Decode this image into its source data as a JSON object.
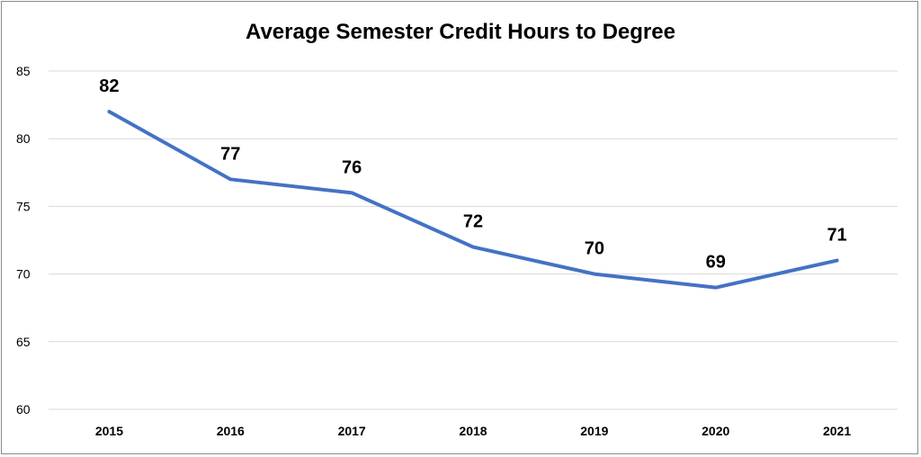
{
  "chart_data": {
    "type": "line",
    "title": "Average Semester Credit Hours to Degree",
    "xlabel": "",
    "ylabel": "",
    "categories": [
      "2015",
      "2016",
      "2017",
      "2018",
      "2019",
      "2020",
      "2021"
    ],
    "series": [
      {
        "values": [
          82,
          77,
          76,
          72,
          70,
          69,
          71
        ]
      }
    ],
    "ylim": [
      60,
      85
    ],
    "yticks": [
      60,
      65,
      70,
      75,
      80,
      85
    ],
    "grid": true,
    "line_color": "#4472C4",
    "data_labels": true
  }
}
